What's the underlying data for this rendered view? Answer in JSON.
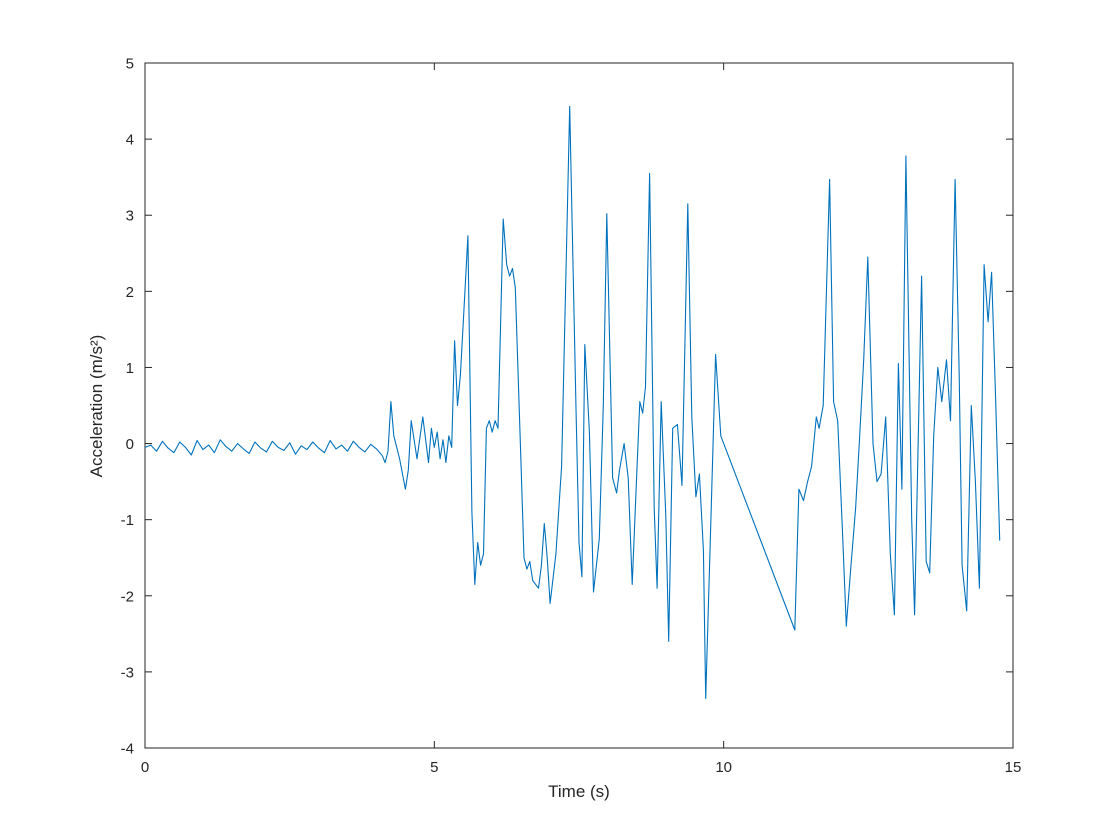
{
  "figure": {
    "background": "#ffffff"
  },
  "chart_data": {
    "type": "line",
    "title": "",
    "xlabel": "Time (s)",
    "ylabel": "Acceleration (m/s²)",
    "xlim": [
      0,
      15
    ],
    "ylim": [
      -4,
      5
    ],
    "xticks": [
      "0",
      "5",
      "10",
      "15"
    ],
    "xtick_values": [
      0,
      5,
      10,
      15
    ],
    "yticks": [
      "-4",
      "-3",
      "-2",
      "-1",
      "0",
      "1",
      "2",
      "3",
      "4",
      "5"
    ],
    "ytick_values": [
      -4,
      -3,
      -2,
      -1,
      0,
      1,
      2,
      3,
      4,
      5
    ],
    "grid": false,
    "legend": null,
    "line_color": "#0072BD",
    "axis_color": "#262626",
    "series": [
      {
        "name": "acceleration",
        "points": [
          [
            0,
            -0.05
          ],
          [
            0.1,
            -0.02
          ],
          [
            0.2,
            -0.1
          ],
          [
            0.3,
            0.03
          ],
          [
            0.4,
            -0.06
          ],
          [
            0.5,
            -0.12
          ],
          [
            0.6,
            0.02
          ],
          [
            0.7,
            -0.05
          ],
          [
            0.8,
            -0.15
          ],
          [
            0.9,
            0.04
          ],
          [
            1,
            -0.08
          ],
          [
            1.1,
            -0.02
          ],
          [
            1.2,
            -0.12
          ],
          [
            1.3,
            0.05
          ],
          [
            1.4,
            -0.04
          ],
          [
            1.5,
            -0.1
          ],
          [
            1.6,
            0
          ],
          [
            1.7,
            -0.07
          ],
          [
            1.8,
            -0.13
          ],
          [
            1.9,
            0.02
          ],
          [
            2,
            -0.06
          ],
          [
            2.1,
            -0.11
          ],
          [
            2.2,
            0.03
          ],
          [
            2.3,
            -0.05
          ],
          [
            2.4,
            -0.09
          ],
          [
            2.5,
            0.01
          ],
          [
            2.6,
            -0.14
          ],
          [
            2.7,
            -0.03
          ],
          [
            2.8,
            -0.08
          ],
          [
            2.9,
            0.02
          ],
          [
            3,
            -0.06
          ],
          [
            3.1,
            -0.12
          ],
          [
            3.2,
            0.04
          ],
          [
            3.3,
            -0.07
          ],
          [
            3.4,
            -0.02
          ],
          [
            3.5,
            -0.1
          ],
          [
            3.6,
            0.03
          ],
          [
            3.7,
            -0.05
          ],
          [
            3.8,
            -0.11
          ],
          [
            3.9,
            -0.01
          ],
          [
            4,
            -0.07
          ],
          [
            4.1,
            -0.16
          ],
          [
            4.15,
            -0.25
          ],
          [
            4.2,
            -0.1
          ],
          [
            4.25,
            0.55
          ],
          [
            4.3,
            0.1
          ],
          [
            4.4,
            -0.2
          ],
          [
            4.5,
            -0.6
          ],
          [
            4.55,
            -0.35
          ],
          [
            4.6,
            0.3
          ],
          [
            4.65,
            0.05
          ],
          [
            4.7,
            -0.2
          ],
          [
            4.8,
            0.35
          ],
          [
            4.9,
            -0.25
          ],
          [
            4.95,
            0.2
          ],
          [
            5,
            -0.05
          ],
          [
            5.05,
            0.15
          ],
          [
            5.1,
            -0.2
          ],
          [
            5.15,
            0.05
          ],
          [
            5.2,
            -0.25
          ],
          [
            5.25,
            0.1
          ],
          [
            5.3,
            -0.05
          ],
          [
            5.35,
            1.35
          ],
          [
            5.4,
            0.5
          ],
          [
            5.45,
            0.9
          ],
          [
            5.5,
            1.6
          ],
          [
            5.58,
            2.73
          ],
          [
            5.65,
            -0.9
          ],
          [
            5.7,
            -1.85
          ],
          [
            5.75,
            -1.3
          ],
          [
            5.8,
            -1.6
          ],
          [
            5.85,
            -1.45
          ],
          [
            5.9,
            0.2
          ],
          [
            5.95,
            0.3
          ],
          [
            6,
            0.15
          ],
          [
            6.05,
            0.3
          ],
          [
            6.1,
            0.2
          ],
          [
            6.19,
            2.95
          ],
          [
            6.25,
            2.35
          ],
          [
            6.3,
            2.2
          ],
          [
            6.35,
            2.3
          ],
          [
            6.4,
            2.05
          ],
          [
            6.5,
            -0.3
          ],
          [
            6.55,
            -1.5
          ],
          [
            6.6,
            -1.65
          ],
          [
            6.65,
            -1.55
          ],
          [
            6.7,
            -1.8
          ],
          [
            6.8,
            -1.9
          ],
          [
            6.85,
            -1.6
          ],
          [
            6.9,
            -1.05
          ],
          [
            6.95,
            -1.5
          ],
          [
            7,
            -2.1
          ],
          [
            7.1,
            -1.45
          ],
          [
            7.2,
            -0.3
          ],
          [
            7.34,
            4.43
          ],
          [
            7.45,
            0.4
          ],
          [
            7.5,
            -1.3
          ],
          [
            7.55,
            -1.75
          ],
          [
            7.6,
            1.3
          ],
          [
            7.68,
            0.15
          ],
          [
            7.75,
            -1.95
          ],
          [
            7.85,
            -1.25
          ],
          [
            7.92,
            0.5
          ],
          [
            7.98,
            3.02
          ],
          [
            8.08,
            -0.45
          ],
          [
            8.15,
            -0.65
          ],
          [
            8.2,
            -0.35
          ],
          [
            8.28,
            0
          ],
          [
            8.35,
            -0.45
          ],
          [
            8.42,
            -1.85
          ],
          [
            8.5,
            -0.35
          ],
          [
            8.55,
            0.55
          ],
          [
            8.6,
            0.4
          ],
          [
            8.65,
            0.75
          ],
          [
            8.72,
            3.55
          ],
          [
            8.8,
            -0.85
          ],
          [
            8.85,
            -1.9
          ],
          [
            8.92,
            0.55
          ],
          [
            9,
            -0.95
          ],
          [
            9.05,
            -2.6
          ],
          [
            9.12,
            0.2
          ],
          [
            9.2,
            0.25
          ],
          [
            9.28,
            -0.55
          ],
          [
            9.38,
            3.15
          ],
          [
            9.45,
            0.35
          ],
          [
            9.52,
            -0.7
          ],
          [
            9.58,
            -0.4
          ],
          [
            9.65,
            -1.4
          ],
          [
            9.69,
            -3.35
          ],
          [
            9.78,
            -1
          ],
          [
            9.86,
            1.17
          ],
          [
            9.95,
            0.1
          ],
          [
            11.23,
            -2.45
          ],
          [
            11.3,
            -0.6
          ],
          [
            11.38,
            -0.75
          ],
          [
            11.45,
            -0.5
          ],
          [
            11.52,
            -0.3
          ],
          [
            11.6,
            0.35
          ],
          [
            11.65,
            0.2
          ],
          [
            11.72,
            0.5
          ],
          [
            11.83,
            3.47
          ],
          [
            11.9,
            0.55
          ],
          [
            11.97,
            0.3
          ],
          [
            12.05,
            -1.1
          ],
          [
            12.12,
            -2.4
          ],
          [
            12.2,
            -1.6
          ],
          [
            12.28,
            -0.85
          ],
          [
            12.35,
            0.1
          ],
          [
            12.42,
            1.1
          ],
          [
            12.49,
            2.45
          ],
          [
            12.58,
            0
          ],
          [
            12.65,
            -0.5
          ],
          [
            12.72,
            -0.4
          ],
          [
            12.8,
            0.35
          ],
          [
            12.88,
            -1.45
          ],
          [
            12.95,
            -2.25
          ],
          [
            13.02,
            1.05
          ],
          [
            13.08,
            -0.6
          ],
          [
            13.15,
            3.78
          ],
          [
            13.25,
            -1
          ],
          [
            13.3,
            -2.25
          ],
          [
            13.42,
            2.2
          ],
          [
            13.5,
            -1.55
          ],
          [
            13.56,
            -1.7
          ],
          [
            13.63,
            0.1
          ],
          [
            13.7,
            1
          ],
          [
            13.77,
            0.55
          ],
          [
            13.85,
            1.1
          ],
          [
            13.92,
            0.3
          ],
          [
            14,
            3.47
          ],
          [
            14.07,
            0.9
          ],
          [
            14.12,
            -1.6
          ],
          [
            14.2,
            -2.2
          ],
          [
            14.28,
            0.5
          ],
          [
            14.35,
            -0.5
          ],
          [
            14.42,
            -1.9
          ],
          [
            14.5,
            2.35
          ],
          [
            14.57,
            1.6
          ],
          [
            14.63,
            2.25
          ],
          [
            14.7,
            0.6
          ],
          [
            14.77,
            -1.27
          ]
        ]
      }
    ]
  }
}
